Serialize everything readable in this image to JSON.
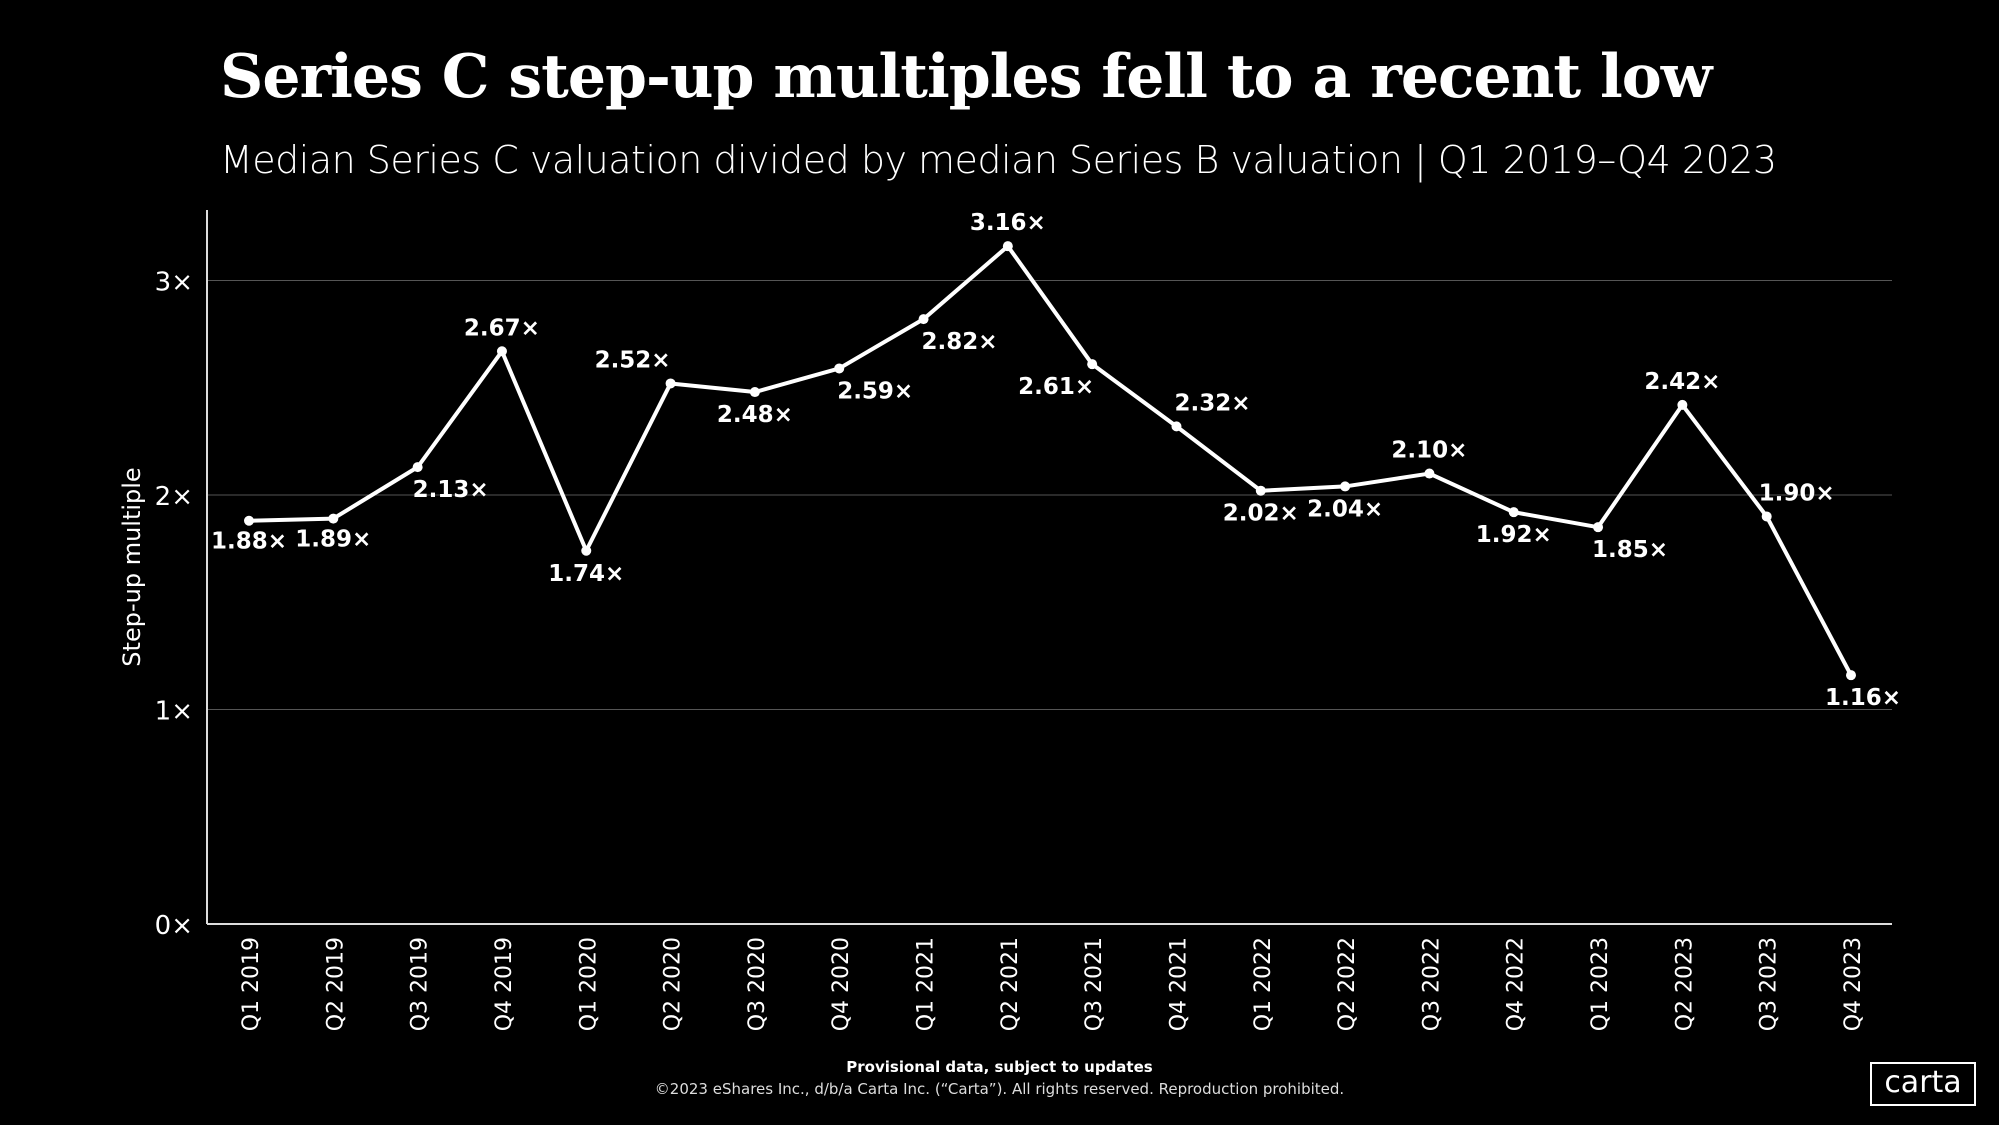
{
  "title": "Series C step-up multiples fell to a recent low",
  "subtitle": "Median Series C valuation divided by median Series B valuation | Q1 2019–Q4 2023",
  "footer": {
    "note": "Provisional data, subject to updates",
    "copyright": "©2023 eShares Inc., d/b/a Carta Inc. (“Carta”). All rights reserved. Reproduction prohibited.",
    "logo": "carta"
  },
  "chart_data": {
    "type": "line",
    "title": "Series C step-up multiples fell to a recent low",
    "ylabel": "Step-up multiple",
    "xlabel": "",
    "ylim": [
      0,
      3.3
    ],
    "yticks": [
      0,
      1,
      2,
      3
    ],
    "ytick_labels": [
      "0×",
      "1×",
      "2×",
      "3×"
    ],
    "grid": true,
    "colors": {
      "background": "#000000",
      "line": "#ffffff",
      "grid": "#555555"
    },
    "categories": [
      "Q1 2019",
      "Q2 2019",
      "Q3 2019",
      "Q4 2019",
      "Q1 2020",
      "Q2 2020",
      "Q3 2020",
      "Q4 2020",
      "Q1 2021",
      "Q2 2021",
      "Q3 2021",
      "Q4 2021",
      "Q1 2022",
      "Q2 2022",
      "Q3 2022",
      "Q4 2022",
      "Q1 2023",
      "Q2 2023",
      "Q3 2023",
      "Q4 2023"
    ],
    "values": [
      1.88,
      1.89,
      2.13,
      2.67,
      1.74,
      2.52,
      2.48,
      2.59,
      2.82,
      3.16,
      2.61,
      2.32,
      2.02,
      2.04,
      2.1,
      1.92,
      1.85,
      2.42,
      1.9,
      1.16
    ],
    "data_labels": [
      "1.88×",
      "1.89×",
      "2.13×",
      "2.67×",
      "1.74×",
      "2.52×",
      "2.48×",
      "2.59×",
      "2.82×",
      "3.16×",
      "2.61×",
      "2.32×",
      "2.02×",
      "2.04×",
      "2.10×",
      "1.92×",
      "1.85×",
      "2.42×",
      "1.90×",
      "1.16×"
    ]
  }
}
